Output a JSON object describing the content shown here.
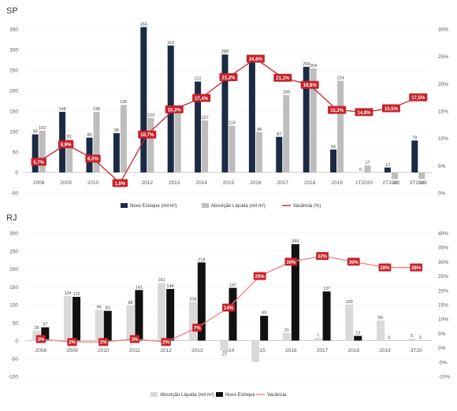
{
  "chart_data": [
    {
      "type": "bar",
      "title": "SP",
      "categories": [
        "2008",
        "2009",
        "2010",
        "2011",
        "2012",
        "2013",
        "2014",
        "2015",
        "2016",
        "2017",
        "2018",
        "2019",
        "1T2020",
        "2T2020",
        "3T2020"
      ],
      "ylim": [
        -50,
        350
      ],
      "yticks": [
        "350",
        "300",
        "250",
        "200",
        "150",
        "100",
        "50",
        "0",
        "-50"
      ],
      "y2lim": [
        0,
        30
      ],
      "y2ticks": [
        "30%",
        "25%",
        "20%",
        "15%",
        "10%",
        "5%",
        "0%"
      ],
      "series": [
        {
          "name": "Novo Estoque (mil m²)",
          "kind": "bar",
          "color": "#1c2b44",
          "values": [
            93,
            148,
            85,
            96,
            355,
            310,
            222,
            288,
            273,
            87,
            258,
            56,
            0,
            12,
            78
          ],
          "labels": [
            "93",
            "148",
            "85",
            "96",
            "355",
            "310",
            "222",
            "288",
            "273",
            "87",
            "258",
            "56",
            "0",
            "12",
            "78"
          ]
        },
        {
          "name": "Absorção Líquida (mil m²)",
          "kind": "bar",
          "color": "#bdbdbd",
          "values": [
            102,
            81,
            148,
            165,
            133,
            152,
            127,
            114,
            98,
            189,
            254,
            224,
            17,
            -16,
            -16
          ],
          "labels": [
            "102",
            "81",
            "148",
            "165",
            "133",
            "152",
            "127",
            "114",
            "98",
            "189",
            "254",
            "224",
            "17",
            "-16",
            "-16"
          ]
        },
        {
          "name": "Vacância (%)",
          "kind": "line",
          "axis": "right",
          "color": "#c8222a",
          "values": [
            5.7,
            8.9,
            6.3,
            1.8,
            10.7,
            15.3,
            17.4,
            21.2,
            24.6,
            21.1,
            19.8,
            15.2,
            14.8,
            15.5,
            17.5
          ],
          "labels": [
            "5,7%",
            "8,9%",
            "6,3%",
            "1,8%",
            "10,7%",
            "15,3%",
            "17,4%",
            "21,2%",
            "24,6%",
            "21,1%",
            "19,8%",
            "15,2%",
            "14,8%",
            "15,5%",
            "17,5%"
          ]
        }
      ]
    },
    {
      "type": "bar",
      "title": "RJ",
      "categories": [
        "2008",
        "2009",
        "2010",
        "2011",
        "2012",
        "2013",
        "2014",
        "2015",
        "2016",
        "2017",
        "2018",
        "2019",
        "3T20"
      ],
      "ylim": [
        -100,
        300
      ],
      "yticks": [
        "300",
        "250",
        "200",
        "150",
        "100",
        "50",
        "0",
        "-50",
        "-100"
      ],
      "y2lim": [
        -10,
        40
      ],
      "y2ticks": [
        "40%",
        "35%",
        "30%",
        "25%",
        "20%",
        "15%",
        "10%",
        "5%",
        "0%",
        "-5%",
        "-10%"
      ],
      "series": [
        {
          "name": "Absorção Líquida (mil m²)",
          "kind": "bar",
          "color": "#d9d9d9",
          "values": [
            28,
            124,
            86,
            98,
            161,
            108,
            -27,
            -60,
            21,
            7,
            100,
            56,
            5
          ],
          "labels": [
            "28",
            "124",
            "86",
            "98",
            "161",
            "108",
            "-27",
            "",
            "21",
            "7",
            "100",
            "56",
            "5"
          ]
        },
        {
          "name": "Novo Estoque",
          "kind": "bar",
          "color": "#111111",
          "values": [
            37,
            122,
            83,
            141,
            144,
            218,
            147,
            69,
            269,
            137,
            13,
            0,
            0
          ],
          "labels": [
            "37",
            "122",
            "83",
            "141",
            "144",
            "218",
            "147",
            "69",
            "269",
            "137",
            "13",
            "0",
            "0"
          ]
        },
        {
          "name": "Vacância",
          "kind": "line",
          "axis": "right",
          "color": "#f08080",
          "marker_color": "#c8222a",
          "values": [
            3,
            2,
            2,
            3,
            2,
            7,
            14,
            25,
            30,
            32,
            30,
            28,
            28
          ],
          "labels": [
            "3%",
            "2%",
            "2%",
            "3%",
            "2%",
            "7%",
            "14%",
            "25%",
            "30%",
            "32%",
            "30%",
            "28%",
            "28%"
          ]
        }
      ]
    }
  ]
}
